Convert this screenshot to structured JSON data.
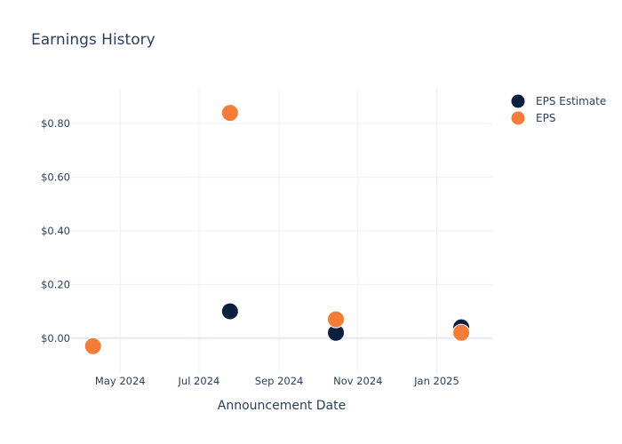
{
  "chart_data": {
    "type": "scatter",
    "title": "Earnings History",
    "xlabel": "Announcement Date",
    "ylabel": "",
    "x_ticks": [
      "2024-05-01",
      "2024-07-01",
      "2024-09-01",
      "2024-11-01",
      "2025-01-01"
    ],
    "x_tick_labels": [
      "May 2024",
      "Jul 2024",
      "Sep 2024",
      "Nov 2024",
      "Jan 2025"
    ],
    "xlim": [
      "2024-03-24",
      "2025-02-13"
    ],
    "y_ticks": [
      0,
      0.2,
      0.4,
      0.6,
      0.8
    ],
    "y_tick_labels": [
      "$0.00",
      "$0.20",
      "$0.40",
      "$0.60",
      "$0.80"
    ],
    "ylim": [
      -0.13,
      0.93
    ],
    "grid": true,
    "legend_position": "top-right",
    "series": [
      {
        "name": "EPS Estimate",
        "color": "#0b1f3f",
        "points": [
          {
            "x": "2024-04-10",
            "y": -0.03
          },
          {
            "x": "2024-07-25",
            "y": 0.1
          },
          {
            "x": "2024-10-15",
            "y": 0.02
          },
          {
            "x": "2025-01-20",
            "y": 0.04
          }
        ]
      },
      {
        "name": "EPS",
        "color": "#f47c36",
        "points": [
          {
            "x": "2024-04-10",
            "y": -0.03
          },
          {
            "x": "2024-07-25",
            "y": 0.84
          },
          {
            "x": "2024-10-15",
            "y": 0.07
          },
          {
            "x": "2025-01-20",
            "y": 0.02
          }
        ]
      }
    ]
  }
}
